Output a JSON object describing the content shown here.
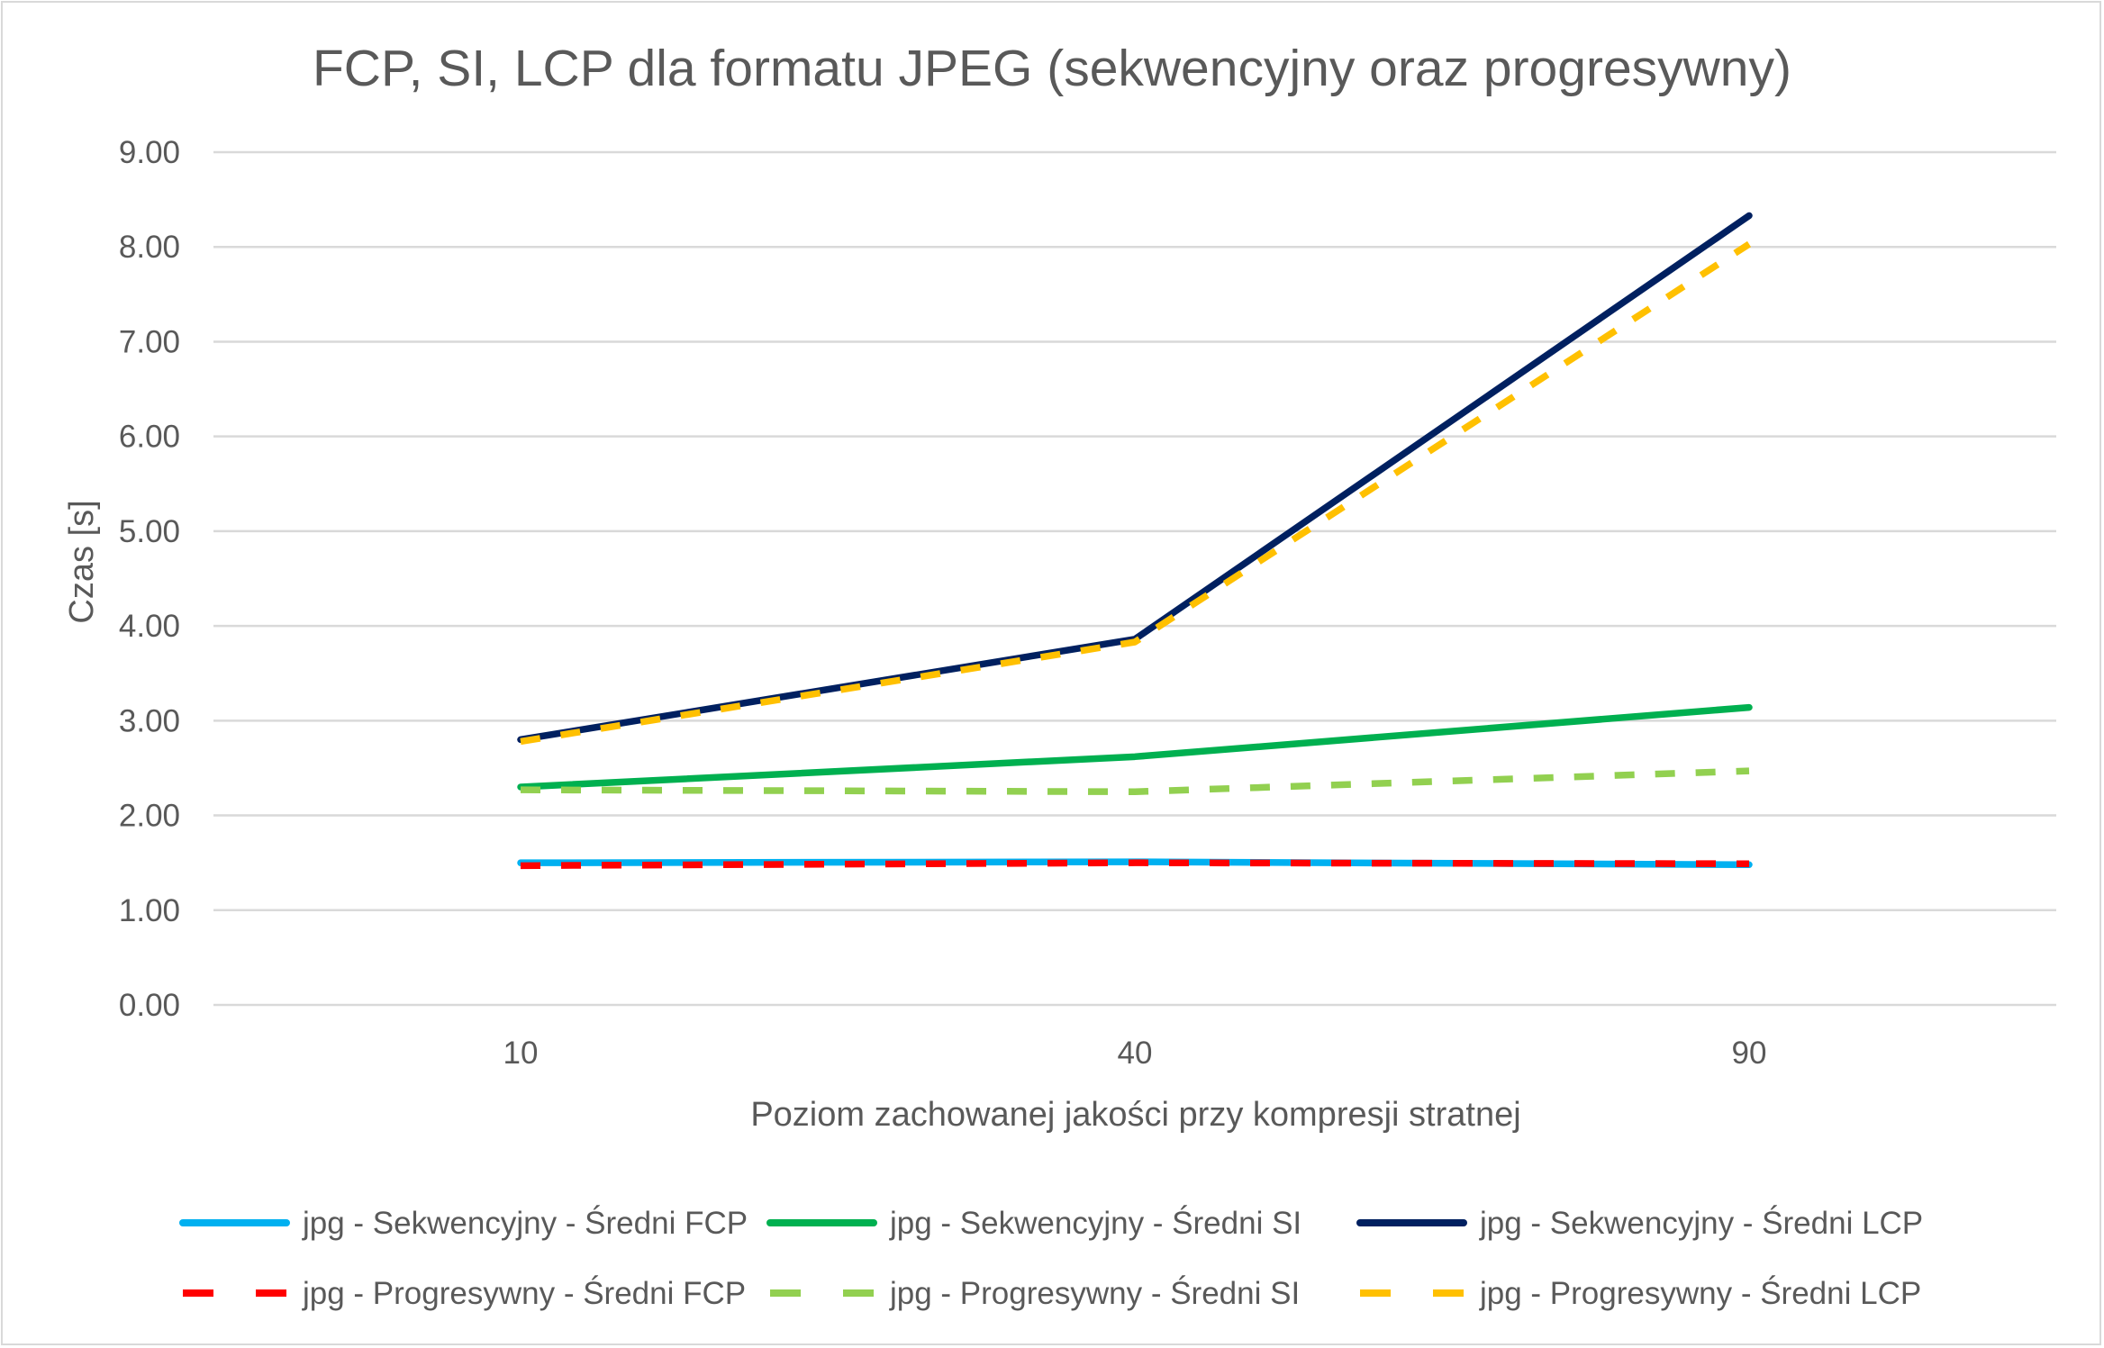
{
  "chart_data": {
    "type": "line",
    "title": "FCP, SI, LCP dla formatu JPEG (sekwencyjny oraz progresywny)",
    "xlabel": "Poziom zachowanej jakości przy kompresji stratnej",
    "ylabel": "Czas [s]",
    "categories": [
      "10",
      "40",
      "90"
    ],
    "ylim": [
      0,
      9
    ],
    "ytick_labels": [
      "0.00",
      "1.00",
      "2.00",
      "3.00",
      "4.00",
      "5.00",
      "6.00",
      "7.00",
      "8.00",
      "9.00"
    ],
    "grid": true,
    "legend_position": "bottom",
    "series": [
      {
        "name": "jpg - Sekwencyjny - Średni FCP",
        "values": [
          1.5,
          1.51,
          1.48
        ],
        "color": "#00b0f0",
        "dashed": false
      },
      {
        "name": "jpg - Sekwencyjny - Średni SI",
        "values": [
          2.3,
          2.62,
          3.14
        ],
        "color": "#00b050",
        "dashed": false
      },
      {
        "name": "jpg - Sekwencyjny - Średni LCP",
        "values": [
          2.8,
          3.86,
          8.33
        ],
        "color": "#002060",
        "dashed": false
      },
      {
        "name": "jpg - Progresywny - Średni FCP",
        "values": [
          1.47,
          1.5,
          1.49
        ],
        "color": "#ff0000",
        "dashed": true
      },
      {
        "name": "jpg - Progresywny - Średni SI",
        "values": [
          2.27,
          2.25,
          2.47
        ],
        "color": "#92d050",
        "dashed": true
      },
      {
        "name": "jpg - Progresywny - Średni LCP",
        "values": [
          2.78,
          3.83,
          8.03
        ],
        "color": "#ffc000",
        "dashed": true
      }
    ]
  }
}
